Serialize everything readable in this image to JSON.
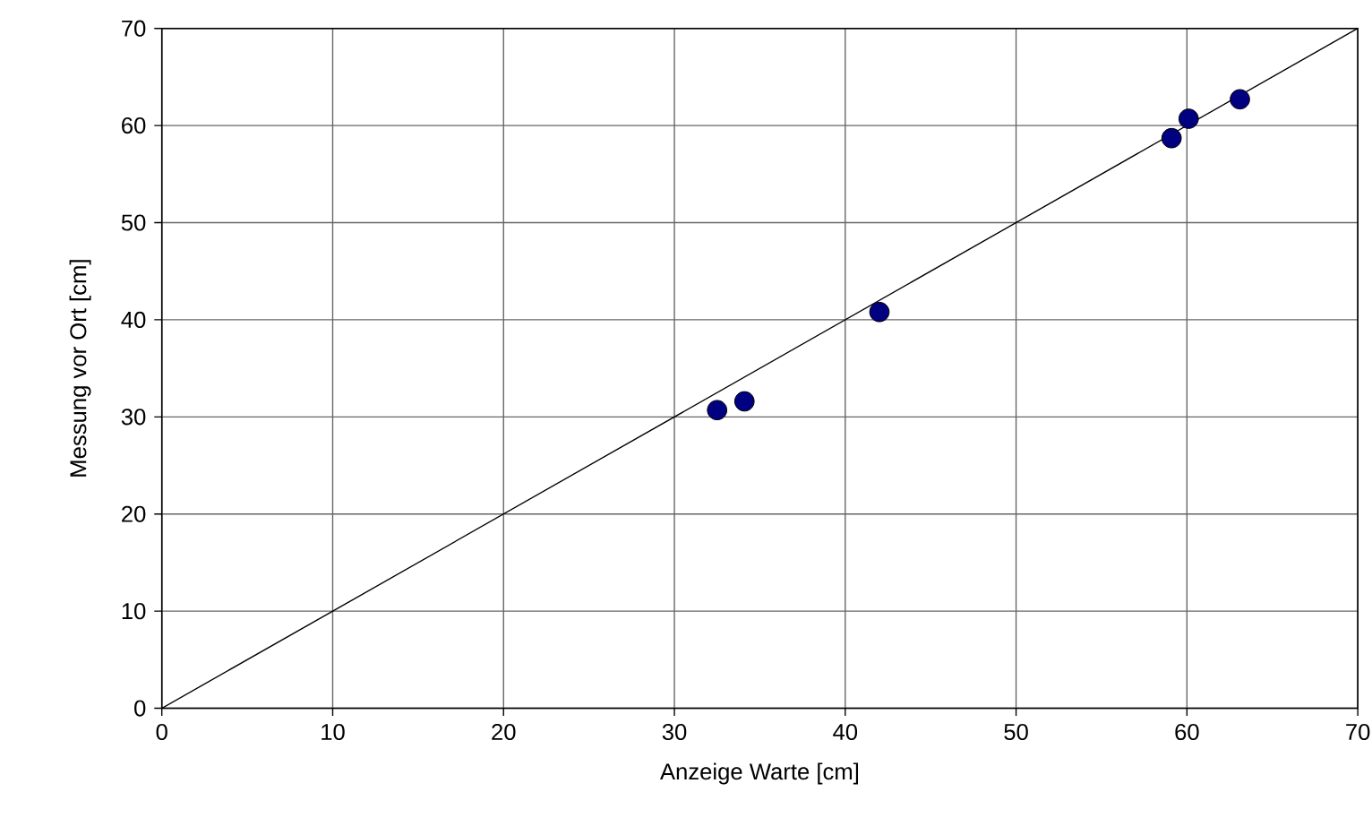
{
  "chart_data": {
    "type": "scatter",
    "xlabel": "Anzeige Warte [cm]",
    "ylabel": "Messung vor Ort [cm]",
    "xlim": [
      0,
      70
    ],
    "ylim": [
      0,
      70
    ],
    "xticks": [
      0,
      10,
      20,
      30,
      40,
      50,
      60,
      70
    ],
    "yticks": [
      0,
      10,
      20,
      30,
      40,
      50,
      60,
      70
    ],
    "grid": true,
    "series": [
      {
        "color": "#000080",
        "marker": "circle",
        "x": [
          32.5,
          34.1,
          42.0,
          59.1,
          60.1,
          63.1
        ],
        "values": [
          30.7,
          31.6,
          40.8,
          58.7,
          60.7,
          62.7
        ]
      },
      {
        "type": "line",
        "color": "#000000",
        "marker": "none",
        "line_style": "solid",
        "x": [
          0,
          70
        ],
        "values": [
          0,
          70
        ]
      }
    ]
  }
}
